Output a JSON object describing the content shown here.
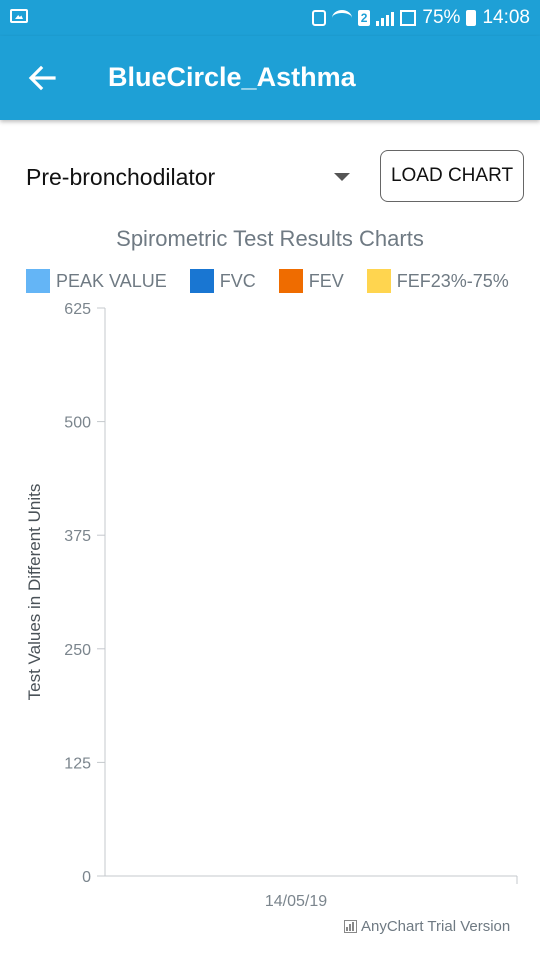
{
  "status_bar": {
    "sim_badge": "2",
    "battery": "75%",
    "time": "14:08"
  },
  "app_bar": {
    "title": "BlueCircle_Asthma"
  },
  "controls": {
    "dropdown_value": "Pre-bronchodilator",
    "load_button": "LOAD CHART"
  },
  "chart_data": {
    "type": "bar",
    "title": "Spirometric Test Results Charts",
    "ylabel": "Test Values in Different Units",
    "xlabel": "",
    "categories": [
      "14/05/19"
    ],
    "series": [
      {
        "name": "PEAK VALUE",
        "color": "#64b5f6",
        "values": [
          null
        ]
      },
      {
        "name": "FVC",
        "color": "#1976d2",
        "values": [
          null
        ]
      },
      {
        "name": "FEV",
        "color": "#ef6c00",
        "values": [
          null
        ]
      },
      {
        "name": "FEF23%-75%",
        "color": "#ffd54f",
        "values": [
          null
        ]
      }
    ],
    "ylim": [
      0,
      625
    ],
    "yticks": [
      0,
      125,
      250,
      375,
      500,
      625
    ],
    "grid": false,
    "legend": "top"
  },
  "watermark": "AnyChart Trial Version"
}
